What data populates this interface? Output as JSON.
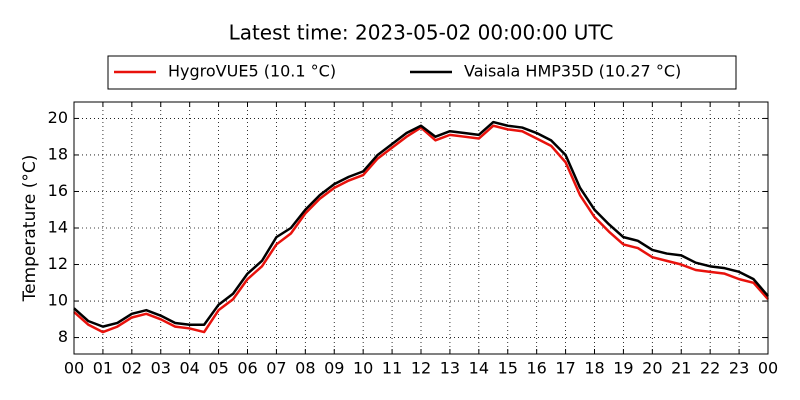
{
  "chart_data": {
    "type": "line",
    "title": "Latest time: 2023-05-02 00:00:00 UTC",
    "ylabel": "Temperature (°C)",
    "x": [
      0,
      0.5,
      1,
      1.5,
      2,
      2.5,
      3,
      3.5,
      4,
      4.5,
      5,
      5.5,
      6,
      6.5,
      7,
      7.5,
      8,
      8.5,
      9,
      9.5,
      10,
      10.5,
      11,
      11.5,
      12,
      12.5,
      13,
      13.5,
      14,
      14.5,
      15,
      15.5,
      16,
      16.5,
      17,
      17.5,
      18,
      18.5,
      19,
      19.5,
      20,
      20.5,
      21,
      21.5,
      22,
      22.5,
      23,
      23.5,
      24
    ],
    "series": [
      {
        "name": "HygroVUE5 (10.1 °C)",
        "color": "#e8120c",
        "values": [
          9.4,
          8.7,
          8.3,
          8.6,
          9.1,
          9.3,
          9.0,
          8.6,
          8.5,
          8.3,
          9.5,
          10.1,
          11.2,
          11.9,
          13.1,
          13.7,
          14.8,
          15.6,
          16.2,
          16.6,
          16.9,
          17.8,
          18.4,
          19.0,
          19.5,
          18.8,
          19.1,
          19.0,
          18.9,
          19.6,
          19.4,
          19.3,
          18.9,
          18.5,
          17.6,
          15.8,
          14.6,
          13.8,
          13.1,
          12.9,
          12.4,
          12.2,
          12.0,
          11.7,
          11.6,
          11.5,
          11.2,
          11.0,
          10.1
        ]
      },
      {
        "name": "Vaisala HMP35D (10.27 °C)",
        "color": "#000000",
        "values": [
          9.6,
          8.9,
          8.6,
          8.8,
          9.3,
          9.5,
          9.2,
          8.8,
          8.7,
          8.7,
          9.8,
          10.4,
          11.5,
          12.2,
          13.5,
          14.0,
          15.0,
          15.8,
          16.4,
          16.8,
          17.1,
          18.0,
          18.6,
          19.2,
          19.6,
          19.0,
          19.3,
          19.2,
          19.1,
          19.8,
          19.6,
          19.5,
          19.2,
          18.8,
          18.0,
          16.2,
          15.0,
          14.2,
          13.5,
          13.3,
          12.8,
          12.6,
          12.5,
          12.1,
          11.9,
          11.8,
          11.6,
          11.2,
          10.27
        ]
      }
    ],
    "xlim": [
      0,
      24
    ],
    "ylim": [
      7.1,
      20.9
    ],
    "xticks": [
      {
        "value": 0,
        "label": "00"
      },
      {
        "value": 1,
        "label": "01"
      },
      {
        "value": 2,
        "label": "02"
      },
      {
        "value": 3,
        "label": "03"
      },
      {
        "value": 4,
        "label": "04"
      },
      {
        "value": 5,
        "label": "05"
      },
      {
        "value": 6,
        "label": "06"
      },
      {
        "value": 7,
        "label": "07"
      },
      {
        "value": 8,
        "label": "08"
      },
      {
        "value": 9,
        "label": "09"
      },
      {
        "value": 10,
        "label": "10"
      },
      {
        "value": 11,
        "label": "11"
      },
      {
        "value": 12,
        "label": "12"
      },
      {
        "value": 13,
        "label": "13"
      },
      {
        "value": 14,
        "label": "14"
      },
      {
        "value": 15,
        "label": "15"
      },
      {
        "value": 16,
        "label": "16"
      },
      {
        "value": 17,
        "label": "17"
      },
      {
        "value": 18,
        "label": "18"
      },
      {
        "value": 19,
        "label": "19"
      },
      {
        "value": 20,
        "label": "20"
      },
      {
        "value": 21,
        "label": "21"
      },
      {
        "value": 22,
        "label": "22"
      },
      {
        "value": 23,
        "label": "23"
      },
      {
        "value": 24,
        "label": "00"
      }
    ],
    "yticks": [
      8,
      10,
      12,
      14,
      16,
      18,
      20
    ],
    "grid": true,
    "legend": "top"
  }
}
